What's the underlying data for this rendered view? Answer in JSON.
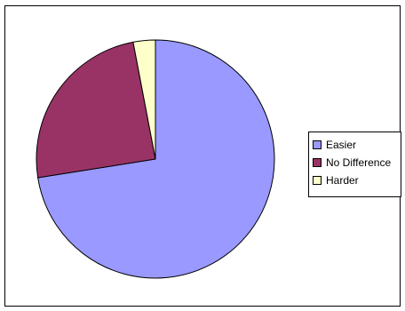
{
  "chart_data": {
    "type": "pie",
    "title": "",
    "categories": [
      "Easier",
      "No Difference",
      "Harder"
    ],
    "values": [
      72.5,
      24.5,
      3.0
    ],
    "colors": [
      "#9999ff",
      "#993366",
      "#ffffcc"
    ],
    "legend": "right",
    "start_angle_deg": 0,
    "direction": "clockwise"
  }
}
